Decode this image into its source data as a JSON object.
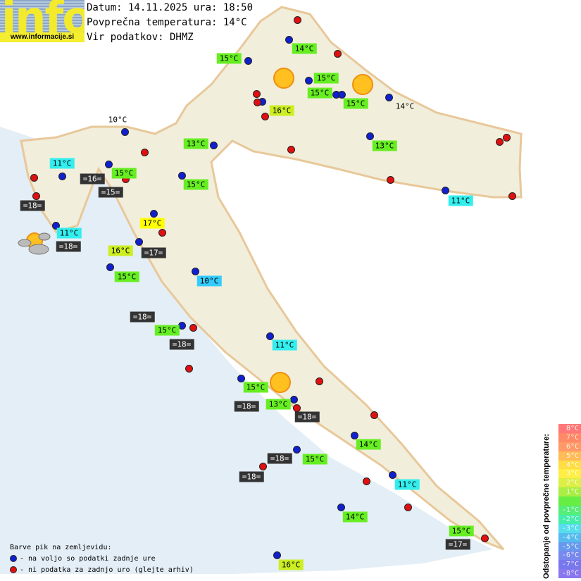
{
  "logo": {
    "text": "info",
    "url": "www.informacije.si"
  },
  "header": {
    "date_line": "Datum: 14.11.2025 ura: 18:50",
    "avg_line": "Povprečna temperatura: 14°C",
    "source_line": "Vir podatkov: DHMZ"
  },
  "palette": {
    "green": "#66ee22",
    "cyan": "#33eeee",
    "lightblue": "#33ccff",
    "yellowgreen": "#ccee22",
    "yellow": "#ffff00",
    "dark": "#333333",
    "station_ok": "#1020d0",
    "station_missing": "#e01010"
  },
  "labels": [
    {
      "text": "14°C",
      "kind": "green"
    },
    {
      "text": "15°C",
      "kind": "green"
    },
    {
      "text": "15°C",
      "kind": "green"
    },
    {
      "text": "15°C",
      "kind": "green"
    },
    {
      "text": "15°C",
      "kind": "green"
    },
    {
      "text": "16°C",
      "kind": "yellowgreen"
    },
    {
      "text": "14°C",
      "kind": "plain"
    },
    {
      "text": "10°C",
      "kind": "plain"
    },
    {
      "text": "13°C",
      "kind": "green"
    },
    {
      "text": "13°C",
      "kind": "green"
    },
    {
      "text": "11°C",
      "kind": "cyan"
    },
    {
      "text": "15°C",
      "kind": "green"
    },
    {
      "text": "15°C",
      "kind": "green"
    },
    {
      "text": "=16=",
      "kind": "dark"
    },
    {
      "text": "=15=",
      "kind": "dark"
    },
    {
      "text": "=18=",
      "kind": "dark"
    },
    {
      "text": "11°C",
      "kind": "cyan"
    },
    {
      "text": "17°C",
      "kind": "yellow"
    },
    {
      "text": "11°C",
      "kind": "cyan"
    },
    {
      "text": "=18=",
      "kind": "dark"
    },
    {
      "text": "16°C",
      "kind": "yellowgreen"
    },
    {
      "text": "=17=",
      "kind": "dark"
    },
    {
      "text": "15°C",
      "kind": "green"
    },
    {
      "text": "10°C",
      "kind": "lightblue"
    },
    {
      "text": "=18=",
      "kind": "dark"
    },
    {
      "text": "15°C",
      "kind": "green"
    },
    {
      "text": "=18=",
      "kind": "dark"
    },
    {
      "text": "11°C",
      "kind": "cyan"
    },
    {
      "text": "15°C",
      "kind": "green"
    },
    {
      "text": "13°C",
      "kind": "green"
    },
    {
      "text": "=18=",
      "kind": "dark"
    },
    {
      "text": "=18=",
      "kind": "dark"
    },
    {
      "text": "14°C",
      "kind": "green"
    },
    {
      "text": "=18=",
      "kind": "dark"
    },
    {
      "text": "15°C",
      "kind": "green"
    },
    {
      "text": "=18=",
      "kind": "dark"
    },
    {
      "text": "11°C",
      "kind": "cyan"
    },
    {
      "text": "14°C",
      "kind": "green"
    },
    {
      "text": "15°C",
      "kind": "green"
    },
    {
      "text": "=17=",
      "kind": "dark"
    },
    {
      "text": "16°C",
      "kind": "yellowgreen"
    }
  ],
  "weather_icons": [
    "sunny",
    "sunny",
    "sunny",
    "partly-cloudy"
  ],
  "legend": {
    "title": "Barve pik na zemljevidu:",
    "blue": "- na voljo so podatki zadnje ure",
    "red": "- ni podatka za zadnjo uro (glejte arhiv)"
  },
  "scale": {
    "title": "Odstopanje od povprečne temperature:",
    "rows": [
      {
        "label": "8°C",
        "color": "#ff7777"
      },
      {
        "label": "7°C",
        "color": "#ff8866"
      },
      {
        "label": "6°C",
        "color": "#ff9966"
      },
      {
        "label": "5°C",
        "color": "#ffbb55"
      },
      {
        "label": "4°C",
        "color": "#ffdd44"
      },
      {
        "label": "3°C",
        "color": "#ffee44"
      },
      {
        "label": "2°C",
        "color": "#ddee44"
      },
      {
        "label": "1°C",
        "color": "#aaee44"
      },
      {
        "label": "",
        "color": "#66ee44"
      },
      {
        "label": "-1°C",
        "color": "#55ee77"
      },
      {
        "label": "-2°C",
        "color": "#44eeaa"
      },
      {
        "label": "-3°C",
        "color": "#55ddee"
      },
      {
        "label": "-4°C",
        "color": "#55bbee"
      },
      {
        "label": "-5°C",
        "color": "#6699ee"
      },
      {
        "label": "-6°C",
        "color": "#7788ee"
      },
      {
        "label": "-7°C",
        "color": "#7777ee"
      },
      {
        "label": "-8°C",
        "color": "#8877ee"
      }
    ]
  }
}
